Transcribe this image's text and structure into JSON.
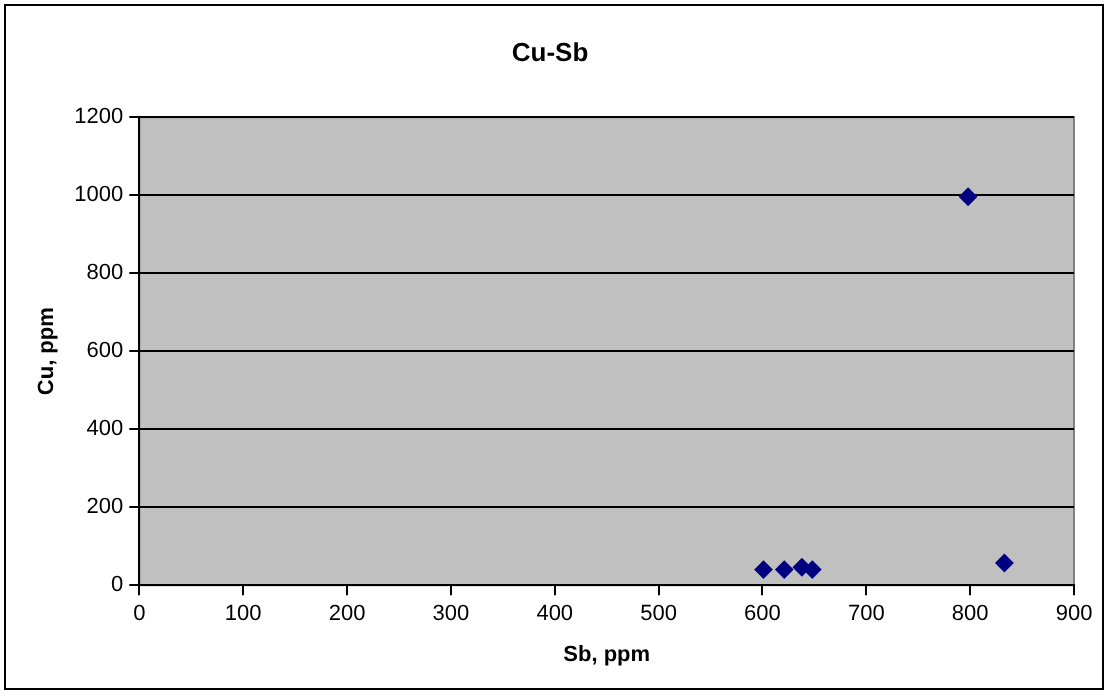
{
  "chart_data": {
    "type": "scatter",
    "title": "Cu-Sb",
    "xlabel": "Sb, ppm",
    "ylabel": "Cu, ppm",
    "x": [
      601,
      621,
      638,
      648,
      798,
      833
    ],
    "series": [
      {
        "color": "#000080",
        "values": [
          40,
          40,
          46,
          40,
          996,
          57
        ]
      }
    ],
    "xlim": [
      0,
      900
    ],
    "xticks": [
      0,
      100,
      200,
      300,
      400,
      500,
      600,
      700,
      800,
      900
    ],
    "ylim": [
      0,
      1200
    ],
    "yticks": [
      0,
      200,
      400,
      600,
      800,
      1000,
      1200
    ],
    "grid": "y",
    "legend": false,
    "marker": "diamond"
  }
}
